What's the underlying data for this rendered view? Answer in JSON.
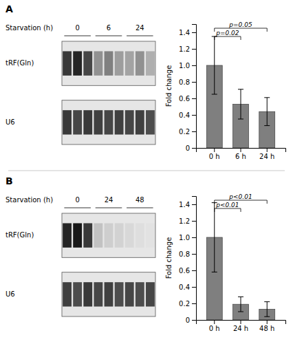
{
  "chart_data": [
    {
      "type": "blot",
      "title": "A",
      "label": "Starvation (h)",
      "groups": [
        "0",
        "6",
        "24"
      ],
      "rows": [
        {
          "name": "tRF(Gln)",
          "values": [
            0.82,
            0.88,
            0.78,
            0.52,
            0.58,
            0.48,
            0.46,
            0.52,
            0.42
          ]
        },
        {
          "name": "U6",
          "values": [
            0.82,
            0.78,
            0.82,
            0.8,
            0.78,
            0.8,
            0.78,
            0.8,
            0.76
          ]
        }
      ]
    },
    {
      "type": "bar",
      "categories": [
        "0 h",
        "6 h",
        "24 h"
      ],
      "values": [
        1.0,
        0.53,
        0.44
      ],
      "errors": [
        0.35,
        0.18,
        0.17
      ],
      "color": "#7f7f7f",
      "ylim": [
        0,
        1.5
      ],
      "yticks": [
        0,
        0.2,
        0.4,
        0.6,
        0.8,
        {
          "value": 1.0,
          "label": "1.0"
        },
        1.2,
        1.4
      ],
      "ylabel": "Fold change",
      "grid": false,
      "annotations": [
        {
          "label": "p=0.02",
          "x1": 0,
          "x2": 1,
          "y": 1.35
        },
        {
          "label": "p=0.05",
          "x1": 0,
          "x2": 2,
          "y": 1.45
        }
      ]
    },
    {
      "type": "blot",
      "title": "B",
      "label": "Starvation (h)",
      "groups": [
        "0",
        "24",
        "48"
      ],
      "rows": [
        {
          "name": "tRF(Gln)",
          "values": [
            0.88,
            0.92,
            0.82,
            0.35,
            0.3,
            0.28,
            0.25,
            0.22,
            0.2
          ]
        },
        {
          "name": "U6",
          "values": [
            0.8,
            0.76,
            0.82,
            0.78,
            0.8,
            0.76,
            0.78,
            0.76,
            0.78
          ]
        }
      ]
    },
    {
      "type": "bar",
      "categories": [
        "0 h",
        "24 h",
        "48 h"
      ],
      "values": [
        1.0,
        0.19,
        0.13
      ],
      "errors": [
        0.42,
        0.09,
        0.09
      ],
      "color": "#7f7f7f",
      "ylim": [
        0,
        1.5
      ],
      "yticks": [
        0,
        0.2,
        0.4,
        0.6,
        0.8,
        {
          "value": 1.0,
          "label": "1.0"
        },
        1.2,
        1.4
      ],
      "ylabel": "Fold change",
      "grid": false,
      "annotations": [
        {
          "label": "p<0.01",
          "x1": 0,
          "x2": 1,
          "y": 1.35
        },
        {
          "label": "p<0.01",
          "x1": 0,
          "x2": 2,
          "y": 1.45
        }
      ]
    }
  ]
}
